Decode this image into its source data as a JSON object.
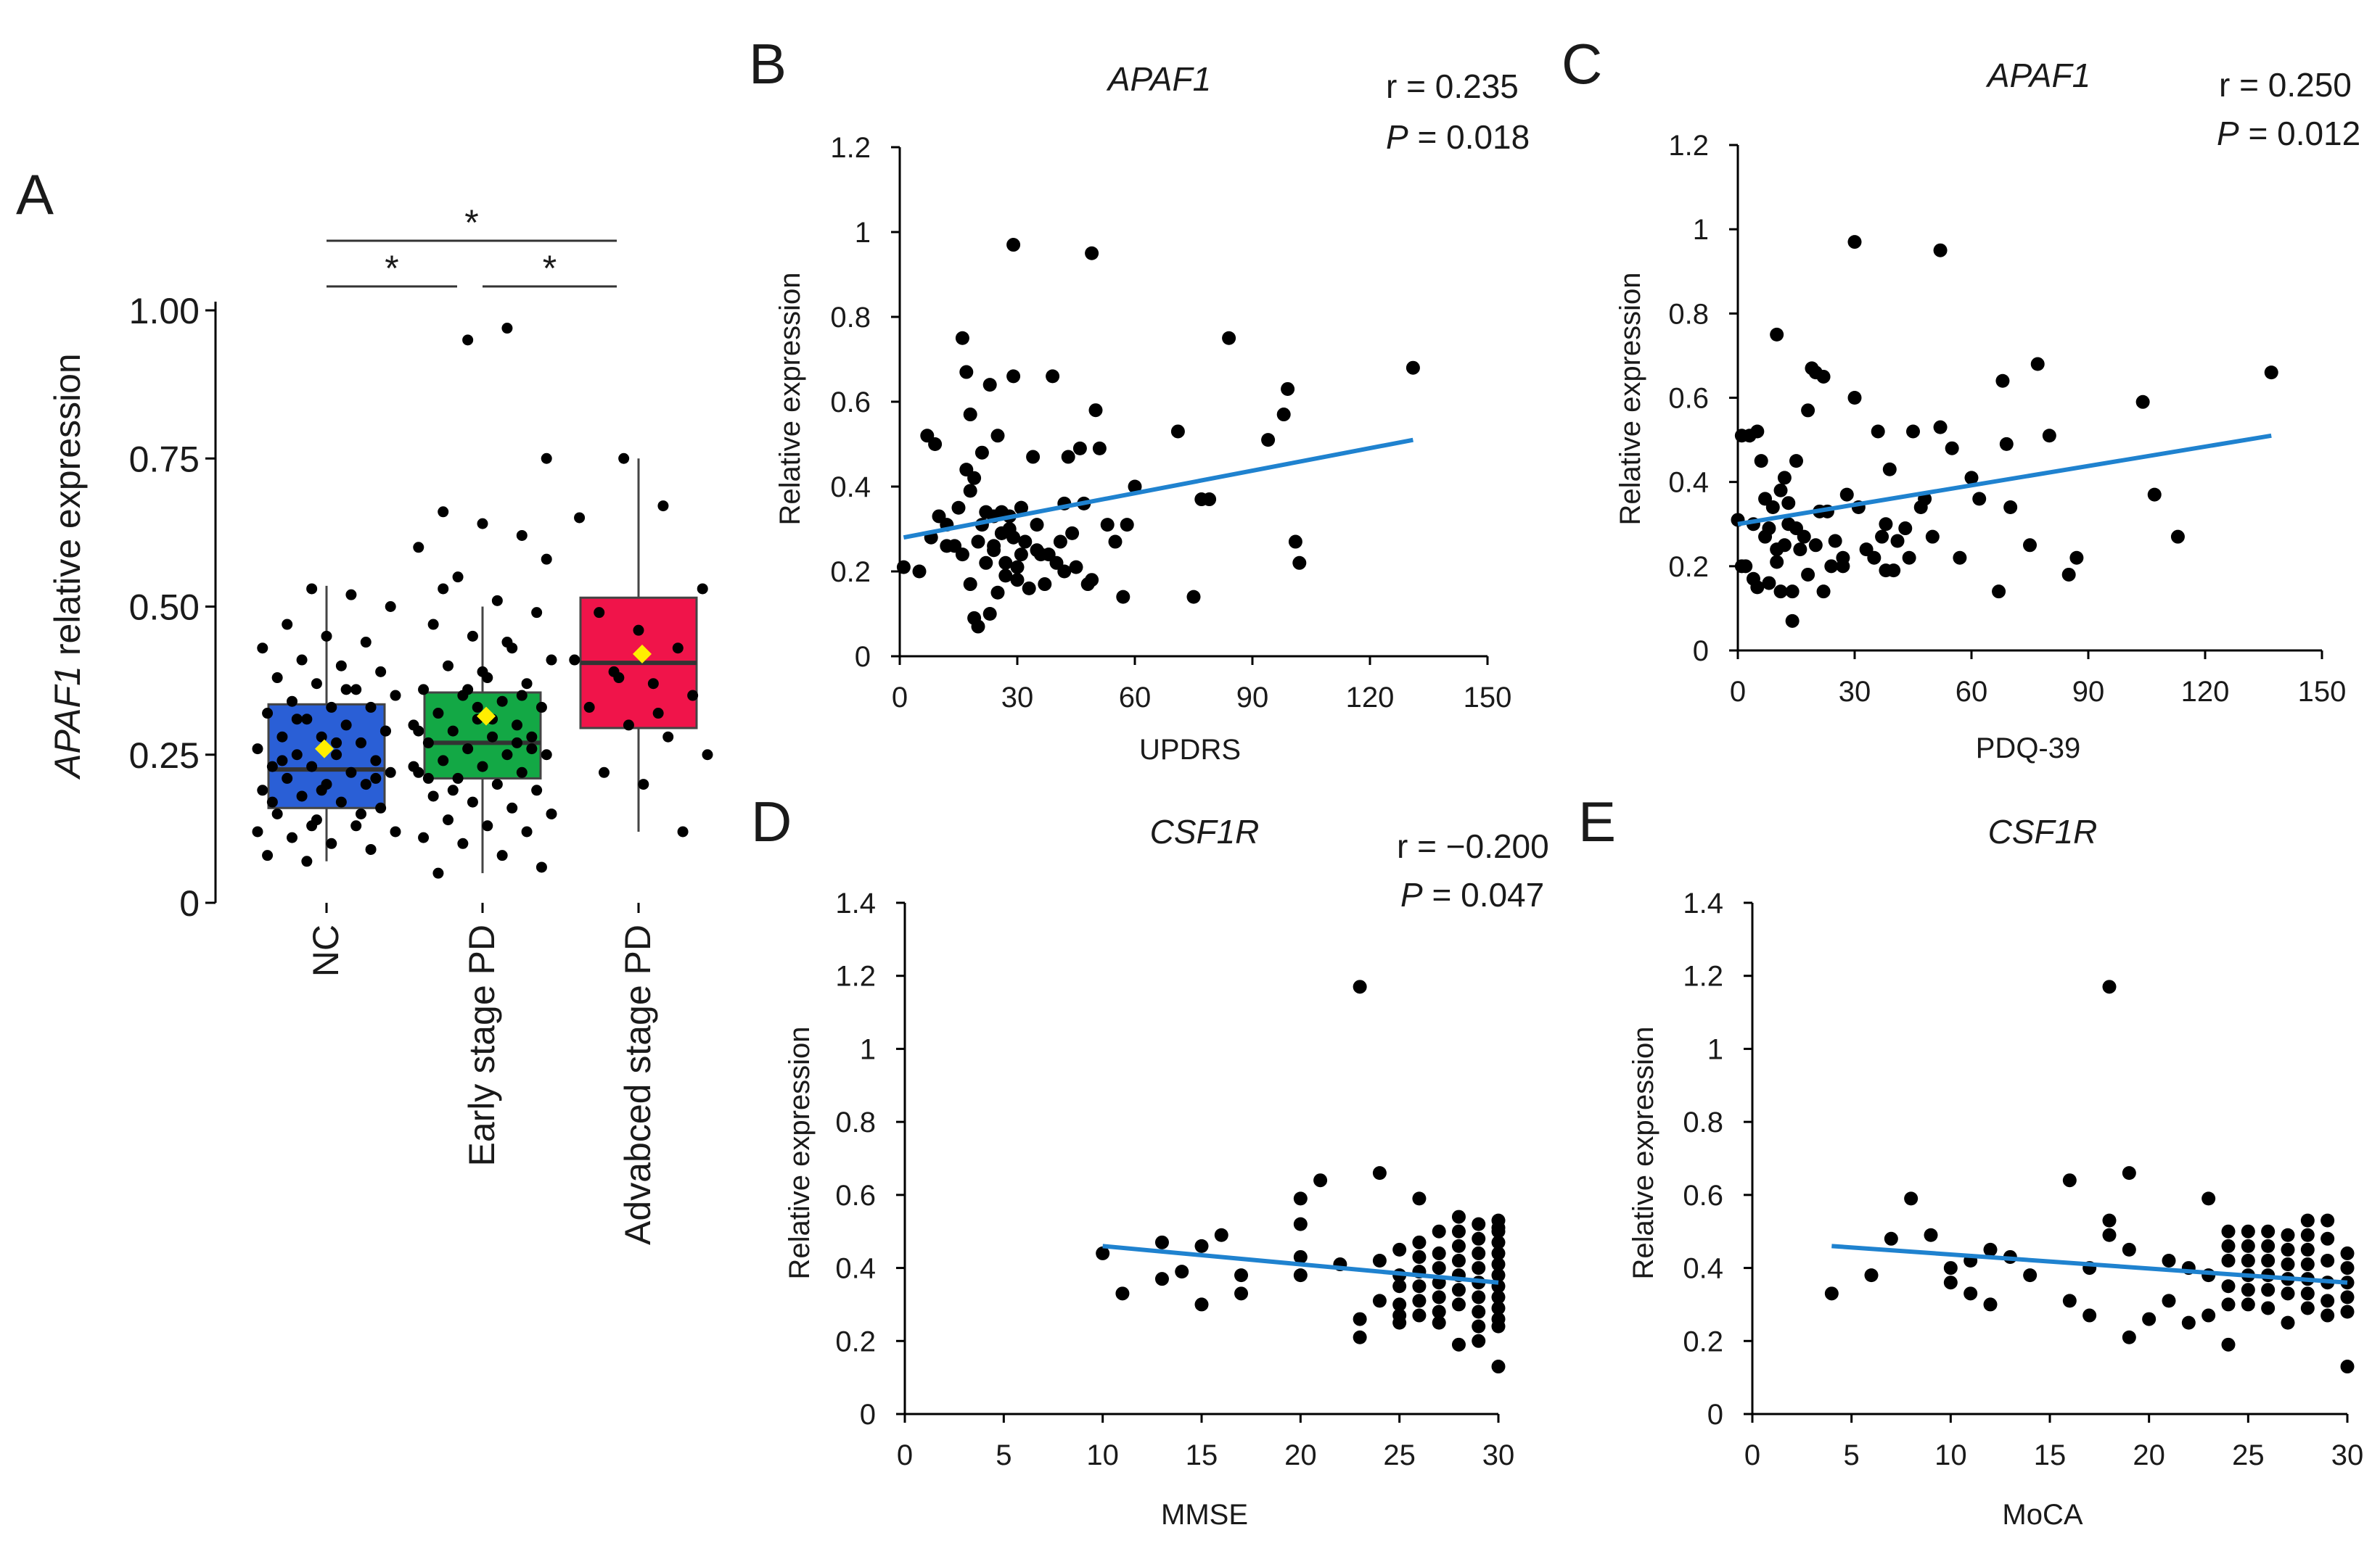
{
  "colors": {
    "NC": "#2a5fd6",
    "Early stage PD": "#13a845",
    "Advabced stage PD": "#f0144a",
    "mean_marker": "#ffee00",
    "fit_line": "#1f82cf"
  },
  "chart_data": [
    {
      "panel": "A",
      "type": "box",
      "ylabel_italic": "APAF1",
      "ylabel_rest": " relative expression",
      "ylim": [
        0,
        1.0
      ],
      "yticks": [
        0,
        0.25,
        0.5,
        0.75,
        1.0
      ],
      "ytick_labels": [
        "0",
        "0.25",
        "0.50",
        "0.75",
        "1.00"
      ],
      "categories": [
        "NC",
        "Early stage PD",
        "Advabced stage PD"
      ],
      "boxes": [
        {
          "name": "NC",
          "q1": 0.16,
          "median": 0.225,
          "q3": 0.335,
          "lower": 0.07,
          "upper": 0.535,
          "mean": 0.26
        },
        {
          "name": "Early stage PD",
          "q1": 0.21,
          "median": 0.27,
          "q3": 0.355,
          "lower": 0.05,
          "upper": 0.5,
          "mean": 0.315
        },
        {
          "name": "Advabced stage PD",
          "q1": 0.295,
          "median": 0.405,
          "q3": 0.515,
          "lower": 0.12,
          "upper": 0.75,
          "mean": 0.42
        }
      ],
      "points": [
        [
          0.53,
          0.52,
          0.5,
          0.47,
          0.45,
          0.44,
          0.43,
          0.41,
          0.4,
          0.39,
          0.38,
          0.37,
          0.36,
          0.35,
          0.34,
          0.33,
          0.33,
          0.32,
          0.31,
          0.3,
          0.29,
          0.28,
          0.28,
          0.27,
          0.26,
          0.25,
          0.25,
          0.24,
          0.23,
          0.23,
          0.22,
          0.22,
          0.21,
          0.2,
          0.2,
          0.19,
          0.18,
          0.17,
          0.16,
          0.15,
          0.14,
          0.13,
          0.12,
          0.11,
          0.1,
          0.09,
          0.08,
          0.07,
          0.36,
          0.29,
          0.24,
          0.19,
          0.15,
          0.12,
          0.31,
          0.27,
          0.21,
          0.17,
          0.13
        ],
        [
          0.95,
          0.97,
          0.75,
          0.66,
          0.64,
          0.62,
          0.6,
          0.55,
          0.51,
          0.49,
          0.47,
          0.45,
          0.43,
          0.41,
          0.4,
          0.38,
          0.37,
          0.36,
          0.35,
          0.34,
          0.33,
          0.32,
          0.31,
          0.3,
          0.3,
          0.29,
          0.28,
          0.28,
          0.27,
          0.26,
          0.25,
          0.25,
          0.24,
          0.23,
          0.22,
          0.22,
          0.21,
          0.2,
          0.19,
          0.18,
          0.17,
          0.16,
          0.15,
          0.14,
          0.13,
          0.12,
          0.11,
          0.1,
          0.08,
          0.06,
          0.05,
          0.33,
          0.27,
          0.23,
          0.19,
          0.31,
          0.26,
          0.21,
          0.36,
          0.44,
          0.58,
          0.53,
          0.39,
          0.35,
          0.29
        ],
        [
          0.75,
          0.67,
          0.53,
          0.49,
          0.46,
          0.43,
          0.41,
          0.39,
          0.37,
          0.35,
          0.33,
          0.3,
          0.28,
          0.25,
          0.22,
          0.2,
          0.12,
          0.65,
          0.38,
          0.32
        ]
      ],
      "significance": [
        {
          "from": "NC",
          "to": "Advabced stage PD",
          "label": "*"
        },
        {
          "from": "NC",
          "to": "Early stage PD",
          "label": "*"
        },
        {
          "from": "Early stage PD",
          "to": "Advabced stage PD",
          "label": "*"
        }
      ]
    },
    {
      "panel": "B",
      "type": "scatter",
      "title": "APAF1",
      "stat_r": "r = 0.235",
      "stat_p_sym": "P",
      "stat_p_val": " = 0.018",
      "xlabel": "UPDRS",
      "ylabel": "Relative expression",
      "xlim": [
        0,
        150
      ],
      "ylim": [
        0,
        1.2
      ],
      "xticks": [
        0,
        30,
        60,
        90,
        120,
        150
      ],
      "yticks": [
        0,
        0.2,
        0.4,
        0.6,
        0.8,
        1,
        1.2
      ],
      "ytick_labels": [
        "0",
        "0.2",
        "0.4",
        "0.6",
        "0.8",
        "1",
        "1.2"
      ],
      "fit": [
        [
          1,
          0.28
        ],
        [
          131,
          0.51
        ]
      ],
      "x": [
        1,
        5,
        7,
        8,
        9,
        10,
        12,
        14,
        15,
        16,
        16,
        17,
        17,
        18,
        18,
        19,
        19,
        20,
        20,
        21,
        21,
        22,
        22,
        23,
        23,
        24,
        24,
        25,
        25,
        26,
        26,
        27,
        27,
        28,
        28,
        29,
        29,
        30,
        30,
        31,
        31,
        32,
        33,
        34,
        35,
        36,
        37,
        38,
        39,
        40,
        41,
        42,
        43,
        44,
        45,
        46,
        47,
        48,
        49,
        50,
        51,
        53,
        55,
        57,
        58,
        60,
        71,
        75,
        77,
        79,
        84,
        94,
        98,
        99,
        101,
        102,
        131,
        29,
        49,
        18,
        24,
        35,
        42,
        12,
        31,
        26
      ],
      "y": [
        0.21,
        0.2,
        0.52,
        0.28,
        0.5,
        0.33,
        0.31,
        0.26,
        0.35,
        0.75,
        0.24,
        0.67,
        0.44,
        0.57,
        0.17,
        0.42,
        0.09,
        0.07,
        0.27,
        0.31,
        0.48,
        0.22,
        0.34,
        0.64,
        0.1,
        0.33,
        0.25,
        0.52,
        0.15,
        0.29,
        0.34,
        0.22,
        0.19,
        0.3,
        0.33,
        0.28,
        0.66,
        0.21,
        0.18,
        0.24,
        0.35,
        0.27,
        0.16,
        0.47,
        0.31,
        0.24,
        0.17,
        0.24,
        0.66,
        0.22,
        0.27,
        0.36,
        0.47,
        0.29,
        0.21,
        0.49,
        0.36,
        0.17,
        0.18,
        0.58,
        0.49,
        0.31,
        0.27,
        0.14,
        0.31,
        0.4,
        0.53,
        0.14,
        0.37,
        0.37,
        0.75,
        0.51,
        0.57,
        0.63,
        0.27,
        0.22,
        0.68,
        0.97,
        0.95,
        0.39,
        0.26,
        0.25,
        0.2,
        0.26,
        0.35,
        0.29
      ]
    },
    {
      "panel": "C",
      "type": "scatter",
      "title": "APAF1",
      "stat_r": "r = 0.250",
      "stat_p_sym": "P",
      "stat_p_val": " = 0.012",
      "xlabel": "PDQ-39",
      "ylabel": "Relative expression",
      "xlim": [
        0,
        150
      ],
      "ylim": [
        0,
        1.2
      ],
      "xticks": [
        0,
        30,
        60,
        90,
        120,
        150
      ],
      "yticks": [
        0,
        0.2,
        0.4,
        0.6,
        0.8,
        1,
        1.2
      ],
      "ytick_labels": [
        "0",
        "0.2",
        "0.4",
        "0.6",
        "0.8",
        "1",
        "1.2"
      ],
      "fit": [
        [
          0,
          0.3
        ],
        [
          137,
          0.51
        ]
      ],
      "x": [
        0,
        1,
        1,
        2,
        3,
        4,
        4,
        5,
        5,
        6,
        7,
        7,
        8,
        8,
        9,
        10,
        10,
        11,
        11,
        12,
        12,
        13,
        13,
        14,
        14,
        15,
        15,
        16,
        17,
        18,
        18,
        19,
        20,
        20,
        21,
        22,
        22,
        23,
        24,
        25,
        27,
        28,
        30,
        31,
        33,
        35,
        36,
        37,
        38,
        38,
        39,
        40,
        41,
        43,
        44,
        45,
        47,
        48,
        50,
        52,
        55,
        57,
        60,
        62,
        67,
        68,
        69,
        70,
        75,
        77,
        80,
        85,
        87,
        104,
        107,
        113,
        137,
        30,
        52,
        10,
        27
      ],
      "y": [
        0.31,
        0.51,
        0.2,
        0.2,
        0.51,
        0.3,
        0.17,
        0.52,
        0.15,
        0.45,
        0.27,
        0.36,
        0.16,
        0.29,
        0.34,
        0.24,
        0.21,
        0.38,
        0.14,
        0.25,
        0.41,
        0.3,
        0.35,
        0.07,
        0.14,
        0.45,
        0.29,
        0.24,
        0.27,
        0.57,
        0.18,
        0.67,
        0.66,
        0.25,
        0.33,
        0.14,
        0.65,
        0.33,
        0.2,
        0.26,
        0.2,
        0.37,
        0.6,
        0.34,
        0.24,
        0.22,
        0.52,
        0.27,
        0.19,
        0.3,
        0.43,
        0.19,
        0.26,
        0.29,
        0.22,
        0.52,
        0.34,
        0.36,
        0.27,
        0.53,
        0.48,
        0.22,
        0.41,
        0.36,
        0.14,
        0.64,
        0.49,
        0.34,
        0.25,
        0.68,
        0.51,
        0.18,
        0.22,
        0.59,
        0.37,
        0.27,
        0.66,
        0.97,
        0.95,
        0.75,
        0.22
      ]
    },
    {
      "panel": "D",
      "type": "scatter",
      "title": "CSF1R",
      "stat_r": "r = −0.200",
      "stat_p_sym": "P",
      "stat_p_val": " = 0.047",
      "xlabel": "MMSE",
      "ylabel": "Relative expression",
      "xlim": [
        0,
        30
      ],
      "ylim": [
        0,
        1.4
      ],
      "xticks": [
        0,
        5,
        10,
        15,
        20,
        25,
        30
      ],
      "yticks": [
        0,
        0.2,
        0.4,
        0.6,
        0.8,
        1,
        1.2,
        1.4
      ],
      "ytick_labels": [
        "0",
        "0.2",
        "0.4",
        "0.6",
        "0.8",
        "1",
        "1.2",
        "1.4"
      ],
      "fit": [
        [
          10,
          0.46
        ],
        [
          30,
          0.36
        ]
      ],
      "x": [
        10,
        11,
        13,
        13,
        14,
        15,
        15,
        16,
        17,
        17,
        20,
        20,
        20,
        20,
        21,
        22,
        23,
        23,
        23,
        24,
        24,
        24,
        25,
        25,
        25,
        25,
        25,
        25,
        26,
        26,
        26,
        26,
        26,
        26,
        26,
        27,
        27,
        27,
        27,
        27,
        27,
        27,
        28,
        28,
        28,
        28,
        28,
        28,
        28,
        28,
        29,
        29,
        29,
        29,
        29,
        29,
        29,
        29,
        29,
        30,
        30,
        30,
        30,
        30,
        30,
        30,
        30,
        30,
        30,
        30,
        30,
        30
      ],
      "y": [
        0.44,
        0.33,
        0.47,
        0.37,
        0.39,
        0.46,
        0.3,
        0.49,
        0.38,
        0.33,
        0.59,
        0.52,
        0.43,
        0.38,
        0.64,
        0.41,
        1.17,
        0.26,
        0.21,
        0.66,
        0.42,
        0.31,
        0.45,
        0.38,
        0.35,
        0.3,
        0.27,
        0.25,
        0.59,
        0.47,
        0.43,
        0.39,
        0.35,
        0.31,
        0.27,
        0.5,
        0.44,
        0.4,
        0.36,
        0.32,
        0.28,
        0.25,
        0.54,
        0.5,
        0.46,
        0.42,
        0.38,
        0.34,
        0.3,
        0.19,
        0.52,
        0.48,
        0.44,
        0.4,
        0.36,
        0.32,
        0.28,
        0.24,
        0.2,
        0.53,
        0.5,
        0.47,
        0.44,
        0.41,
        0.38,
        0.35,
        0.32,
        0.29,
        0.26,
        0.24,
        0.13,
        0.51
      ]
    },
    {
      "panel": "E",
      "type": "scatter",
      "title": "CSF1R",
      "xlabel": "MoCA",
      "ylabel": "Relative expression",
      "xlim": [
        0,
        30
      ],
      "ylim": [
        0,
        1.4
      ],
      "xticks": [
        0,
        5,
        10,
        15,
        20,
        25,
        30
      ],
      "yticks": [
        0,
        0.2,
        0.4,
        0.6,
        0.8,
        1,
        1.2,
        1.4
      ],
      "ytick_labels": [
        "0",
        "0.2",
        "0.4",
        "0.6",
        "0.8",
        "1",
        "1.2",
        "1.4"
      ],
      "fit": [
        [
          4,
          0.46
        ],
        [
          30,
          0.36
        ]
      ],
      "x": [
        4,
        6,
        7,
        8,
        9,
        10,
        10,
        11,
        11,
        12,
        12,
        13,
        14,
        16,
        16,
        17,
        17,
        18,
        18,
        18,
        19,
        19,
        19,
        20,
        21,
        21,
        22,
        22,
        23,
        23,
        23,
        24,
        24,
        24,
        24,
        24,
        24,
        25,
        25,
        25,
        25,
        25,
        25,
        26,
        26,
        26,
        26,
        26,
        26,
        27,
        27,
        27,
        27,
        27,
        27,
        28,
        28,
        28,
        28,
        28,
        28,
        28,
        29,
        29,
        29,
        29,
        29,
        29,
        30,
        30,
        30,
        30,
        30,
        30
      ],
      "y": [
        0.33,
        0.38,
        0.48,
        0.59,
        0.49,
        0.4,
        0.36,
        0.42,
        0.33,
        0.45,
        0.3,
        0.43,
        0.38,
        0.64,
        0.31,
        0.4,
        0.27,
        1.17,
        0.53,
        0.49,
        0.66,
        0.45,
        0.21,
        0.26,
        0.42,
        0.31,
        0.4,
        0.25,
        0.59,
        0.38,
        0.27,
        0.5,
        0.46,
        0.42,
        0.35,
        0.3,
        0.19,
        0.5,
        0.46,
        0.42,
        0.38,
        0.34,
        0.3,
        0.5,
        0.46,
        0.42,
        0.38,
        0.34,
        0.29,
        0.49,
        0.45,
        0.41,
        0.37,
        0.33,
        0.25,
        0.53,
        0.49,
        0.45,
        0.41,
        0.37,
        0.33,
        0.29,
        0.53,
        0.48,
        0.42,
        0.36,
        0.31,
        0.27,
        0.44,
        0.4,
        0.36,
        0.32,
        0.28,
        0.13
      ]
    }
  ]
}
